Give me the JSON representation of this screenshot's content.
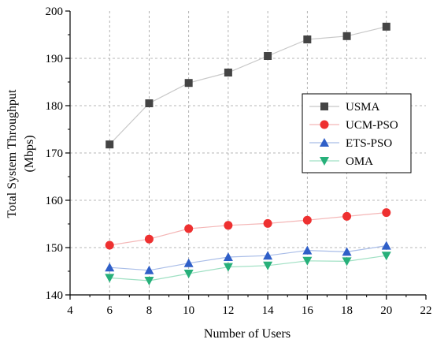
{
  "chart_data": {
    "type": "line",
    "xlabel": "Number of Users",
    "ylabel_line1": "Total System Throughput",
    "ylabel_line2": "(Mbps)",
    "xlim": [
      4,
      22
    ],
    "ylim": [
      140,
      200
    ],
    "x_ticks": [
      4,
      6,
      8,
      10,
      12,
      14,
      16,
      18,
      20,
      22
    ],
    "y_ticks": [
      140,
      150,
      160,
      170,
      180,
      190,
      200
    ],
    "grid": true,
    "legend_position": "right-middle",
    "x": [
      6,
      8,
      10,
      12,
      14,
      16,
      18,
      20
    ],
    "series": [
      {
        "name": "USMA",
        "marker": "square",
        "marker_color": "#444444",
        "line_color": "#c8c8c8",
        "values": [
          171.8,
          180.5,
          184.8,
          187.0,
          190.5,
          194.0,
          194.7,
          196.7
        ]
      },
      {
        "name": "UCM-PSO",
        "marker": "circle",
        "marker_color": "#ee3030",
        "line_color": "#f4b6b6",
        "values": [
          150.5,
          151.8,
          154.0,
          154.7,
          155.1,
          155.8,
          156.6,
          157.4
        ]
      },
      {
        "name": "ETS-PSO",
        "marker": "triangle-up",
        "marker_color": "#2f5fc8",
        "line_color": "#a9bde8",
        "values": [
          145.8,
          145.2,
          146.7,
          148.0,
          148.3,
          149.4,
          149.1,
          150.4
        ]
      },
      {
        "name": "OMA",
        "marker": "triangle-down",
        "marker_color": "#27b07a",
        "line_color": "#9fe0c3",
        "values": [
          143.6,
          143.0,
          144.5,
          145.9,
          146.2,
          147.2,
          147.1,
          148.3
        ]
      }
    ]
  }
}
